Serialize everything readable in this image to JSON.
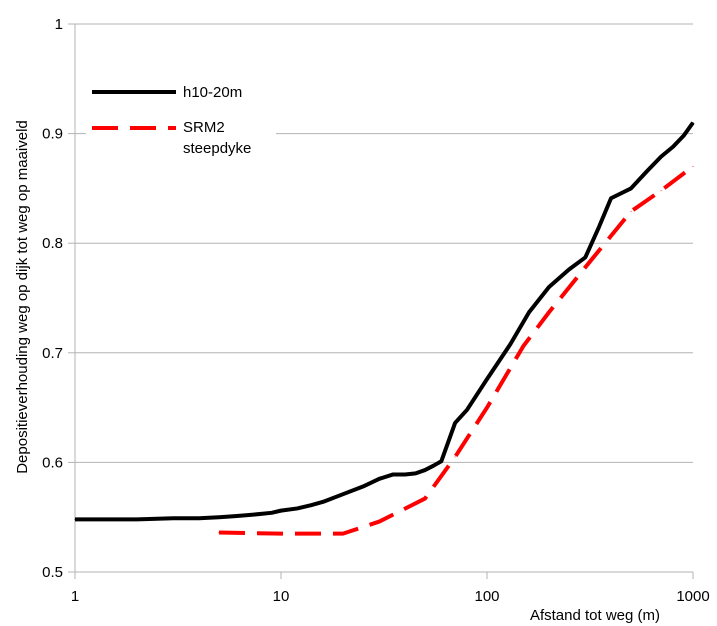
{
  "chart_data": {
    "type": "line",
    "title": "",
    "xlabel": "Afstand tot weg (m)",
    "ylabel": "Depositieverhouding weg op dijk tot weg op maaiveld",
    "x_scale": "log",
    "xlim": [
      1,
      1000
    ],
    "ylim": [
      0.5,
      1
    ],
    "grid": true,
    "legend_position": "top-left",
    "x_ticks": [
      {
        "value": 1,
        "label": "1"
      },
      {
        "value": 10,
        "label": "10"
      },
      {
        "value": 100,
        "label": "100"
      },
      {
        "value": 1000,
        "label": "1000"
      }
    ],
    "y_ticks": [
      {
        "value": 0.5,
        "label": "0.5"
      },
      {
        "value": 0.6,
        "label": "0.6"
      },
      {
        "value": 0.7,
        "label": "0.7"
      },
      {
        "value": 0.8,
        "label": "0.8"
      },
      {
        "value": 0.9,
        "label": "0.9"
      },
      {
        "value": 1,
        "label": "1"
      }
    ],
    "series": [
      {
        "name": "h10-20m",
        "color": "#000000",
        "dash": "solid",
        "x": [
          1,
          1.5,
          2,
          3,
          4,
          5,
          6,
          7,
          8,
          9,
          10,
          12,
          14,
          16,
          20,
          25,
          30,
          35,
          40,
          45,
          50,
          55,
          60,
          70,
          80,
          100,
          130,
          160,
          200,
          250,
          300,
          350,
          400,
          500,
          600,
          700,
          800,
          900,
          1000
        ],
        "y": [
          0.548,
          0.548,
          0.548,
          0.549,
          0.549,
          0.55,
          0.551,
          0.552,
          0.553,
          0.554,
          0.556,
          0.558,
          0.561,
          0.564,
          0.571,
          0.578,
          0.585,
          0.589,
          0.589,
          0.59,
          0.593,
          0.597,
          0.601,
          0.636,
          0.648,
          0.676,
          0.708,
          0.737,
          0.76,
          0.776,
          0.787,
          0.815,
          0.841,
          0.85,
          0.866,
          0.879,
          0.888,
          0.898,
          0.91
        ]
      },
      {
        "name": "SRM2\nsteepdyke",
        "color": "#ff0000",
        "dash": "dashed",
        "x": [
          5,
          10,
          20,
          30,
          50,
          70,
          100,
          150,
          200,
          300,
          500,
          700,
          1000
        ],
        "y": [
          0.536,
          0.535,
          0.535,
          0.546,
          0.567,
          0.605,
          0.65,
          0.706,
          0.737,
          0.778,
          0.829,
          0.848,
          0.87
        ]
      }
    ]
  }
}
